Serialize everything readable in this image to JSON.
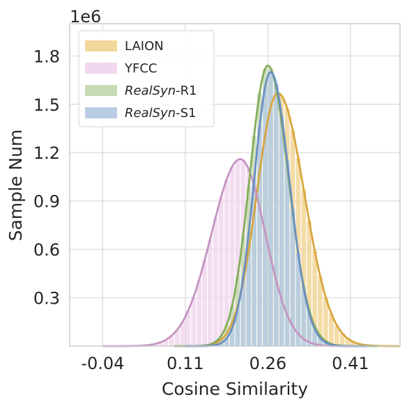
{
  "chart_data": {
    "type": "histogram-line",
    "xlabel": "Cosine Similarity",
    "ylabel": "Sample Num",
    "y_scale_label": "1e6",
    "x_ticks": [
      -0.04,
      0.11,
      0.26,
      0.41
    ],
    "x_tick_labels": [
      "-0.04",
      "0.11",
      "0.26",
      "0.41"
    ],
    "y_ticks": [
      0.3,
      0.6,
      0.9,
      1.2,
      1.5,
      1.8
    ],
    "y_tick_labels": [
      "0.3",
      "0.6",
      "0.9",
      "1.2",
      "1.5",
      "1.8"
    ],
    "xlim": [
      -0.1,
      0.5
    ],
    "ylim": [
      0,
      2.0
    ],
    "grid": true,
    "legend_position": "top-left",
    "series": [
      {
        "name": "LAION",
        "name_italic": "",
        "name_rest": "LAION",
        "fill": "#f1d799",
        "line": "#d8a53d",
        "peak_x": 0.278,
        "peak_y": 1.57,
        "sigma_left": 0.038,
        "sigma_right": 0.048,
        "x_start": 0.11,
        "x_end": 0.5
      },
      {
        "name": "YFCC",
        "name_italic": "",
        "name_rest": "YFCC",
        "fill": "#f2d8ee",
        "line": "#c495c2",
        "peak_x": 0.21,
        "peak_y": 1.16,
        "sigma_left": 0.052,
        "sigma_right": 0.045,
        "x_start": -0.04,
        "x_end": 0.43
      },
      {
        "name": "RealSyn-R1",
        "name_italic": "RealSyn",
        "name_rest": "-R1",
        "fill": "#c7dcb4",
        "line": "#84ad5b",
        "peak_x": 0.26,
        "peak_y": 1.74,
        "sigma_left": 0.033,
        "sigma_right": 0.037,
        "x_start": 0.09,
        "x_end": 0.46
      },
      {
        "name": "RealSyn-S1",
        "name_italic": "RealSyn",
        "name_rest": "-S1",
        "fill": "#b9cce4",
        "line": "#6b8fc2",
        "peak_x": 0.265,
        "peak_y": 1.7,
        "sigma_left": 0.03,
        "sigma_right": 0.034,
        "x_start": 0.11,
        "x_end": 0.44
      }
    ],
    "bars_overlap_colour": "#a0bcbe"
  }
}
